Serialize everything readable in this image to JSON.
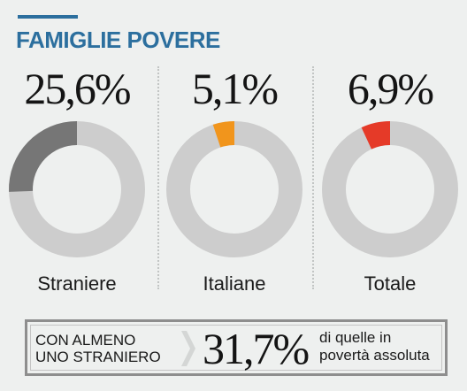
{
  "header": {
    "title": "FAMIGLIE POVERE"
  },
  "colors": {
    "accent": "#2c6f9e",
    "ring_track": "#cdcdcd",
    "straniere": "#767676",
    "italiane": "#f1951c",
    "totale": "#e53a28"
  },
  "chart_data": {
    "type": "pie",
    "title": "FAMIGLIE POVERE",
    "categories": [
      "Straniere",
      "Italiane",
      "Totale"
    ],
    "values": [
      25.6,
      5.1,
      6.9
    ],
    "value_labels": [
      "25,6%",
      "5,1%",
      "6,9%"
    ],
    "unit": "%",
    "max": 100
  },
  "callout": {
    "label_line1": "CON ALMENO",
    "label_line2": "UNO STRANIERO",
    "value": 31.7,
    "value_label": "31,7%",
    "note_line1": "di quelle in",
    "note_line2": "povertà assoluta"
  }
}
